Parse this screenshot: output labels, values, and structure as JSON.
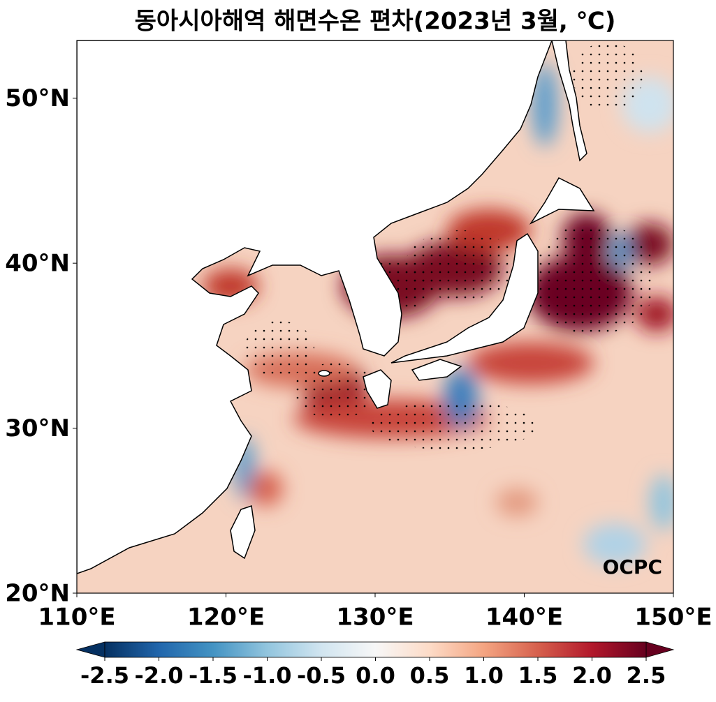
{
  "title": "동아시아해역 해면수온 편차(2023년 3월, ℃)",
  "lon_range": [
    110,
    150
  ],
  "lat_range": [
    20,
    53.5
  ],
  "lon_ticks": [
    {
      "value": 110,
      "label": "110°E"
    },
    {
      "value": 120,
      "label": "120°E"
    },
    {
      "value": 130,
      "label": "130°E"
    },
    {
      "value": 140,
      "label": "140°E"
    },
    {
      "value": 150,
      "label": "150°E"
    }
  ],
  "lat_ticks": [
    {
      "value": 20,
      "label": "20°N"
    },
    {
      "value": 30,
      "label": "30°N"
    },
    {
      "value": 40,
      "label": "40°N"
    },
    {
      "value": 50,
      "label": "50°N"
    }
  ],
  "colorbar": {
    "range": [
      -2.5,
      2.5
    ],
    "colors": [
      "#053061",
      "#2166ac",
      "#4393c3",
      "#92c5de",
      "#d1e5f0",
      "#f7f7f7",
      "#fddbc7",
      "#f4a582",
      "#d6604d",
      "#b2182b",
      "#67001f"
    ],
    "ticks": [
      -2.5,
      {
        "value": -2,
        "label": "-2.0"
      },
      -1.5,
      {
        "value": -1,
        "label": "-1.0"
      },
      -0.5,
      {
        "value": 0,
        "label": "0.0"
      },
      0.5,
      {
        "value": 1,
        "label": "1.0"
      },
      1.5,
      {
        "value": 2,
        "label": "2.0"
      },
      2.5
    ]
  },
  "watermark": "OCPC"
}
